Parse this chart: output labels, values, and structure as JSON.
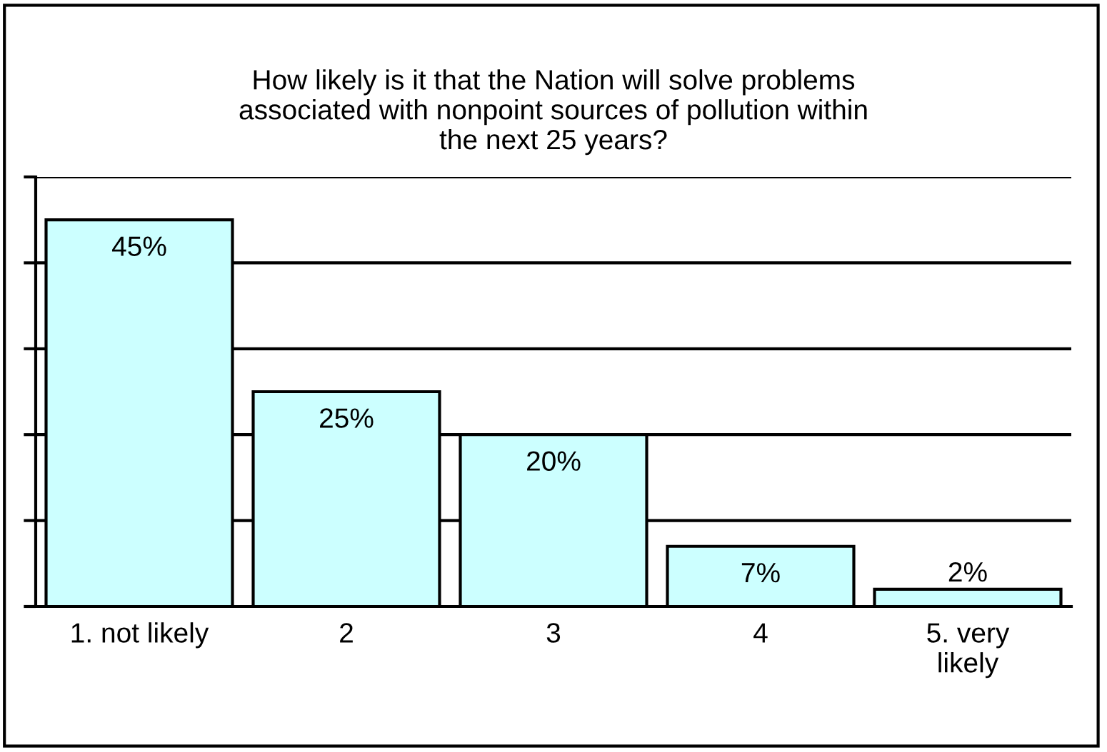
{
  "chart_data": {
    "type": "bar",
    "title": "How likely is it that the Nation will solve problems\nassociated with nonpoint sources of pollution within\nthe next 25 years?",
    "categories": [
      "1. not likely",
      "2",
      "3",
      "4",
      "5. very\nlikely"
    ],
    "values": [
      45,
      25,
      20,
      7,
      2
    ],
    "color": "#ccffff",
    "ylim": [
      0,
      50
    ],
    "yticks": [
      {
        "value": 0,
        "label": null
      },
      {
        "value": 10,
        "label": null
      },
      {
        "value": 20,
        "label": null
      },
      {
        "value": 30,
        "label": null
      },
      {
        "value": 40,
        "label": null
      },
      {
        "value": 50,
        "label": null
      }
    ],
    "value_labels": [
      "45%",
      "25%",
      "20%",
      "7%",
      "2%"
    ],
    "grid": "y",
    "tick_labels": "x"
  }
}
